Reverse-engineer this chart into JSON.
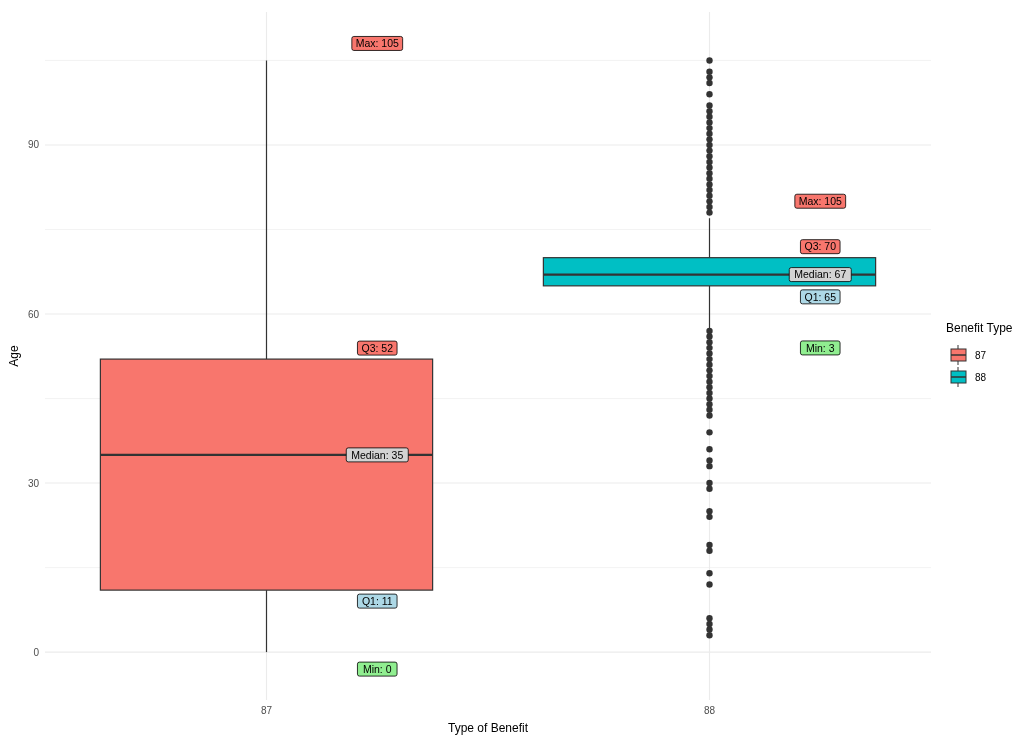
{
  "chart_data": {
    "type": "box",
    "xlabel": "Type of Benefit",
    "ylabel": "Age",
    "legend_title": "Benefit Type",
    "legend": "right",
    "grid": true,
    "categories": [
      "87",
      "88"
    ],
    "series": [
      {
        "name": "87",
        "color": "#f8766d",
        "boxes": [
          {
            "low": 0,
            "q1": 11,
            "median": 35,
            "q3": 52,
            "high": 105
          },
          null
        ]
      },
      {
        "name": "88",
        "color": "#00bfc4",
        "boxes": [
          null,
          {
            "low": 57,
            "q1": 65,
            "median": 67,
            "q3": 70,
            "high": 77,
            "outliers": [
              105,
              103,
              102,
              101,
              99,
              97,
              96,
              95,
              94,
              93,
              92,
              91,
              90,
              89,
              88,
              87,
              86,
              85,
              84,
              83,
              82,
              81,
              80,
              79,
              78,
              57,
              56,
              55,
              54,
              53,
              52,
              51,
              50,
              49,
              48,
              47,
              46,
              45,
              44,
              43,
              42,
              39,
              36,
              34,
              33,
              30,
              29,
              25,
              24,
              19,
              18,
              14,
              12,
              6,
              5,
              4,
              3
            ]
          }
        ]
      }
    ],
    "ylim": [
      -8.5,
      113.6
    ],
    "yticks": [
      0,
      {
        "value": 15,
        "label": null
      },
      30,
      {
        "value": 45,
        "label": null
      },
      60,
      {
        "value": 75,
        "label": null
      },
      90,
      {
        "value": 105,
        "label": null
      }
    ],
    "annotations": [
      "Max: 105",
      "Q3: 52",
      "Median: 35",
      "Q1: 11",
      "Min: 0",
      "Max: 105",
      "Q3: 70",
      "Median: 67",
      "Q1: 65",
      "Min: 3"
    ]
  }
}
